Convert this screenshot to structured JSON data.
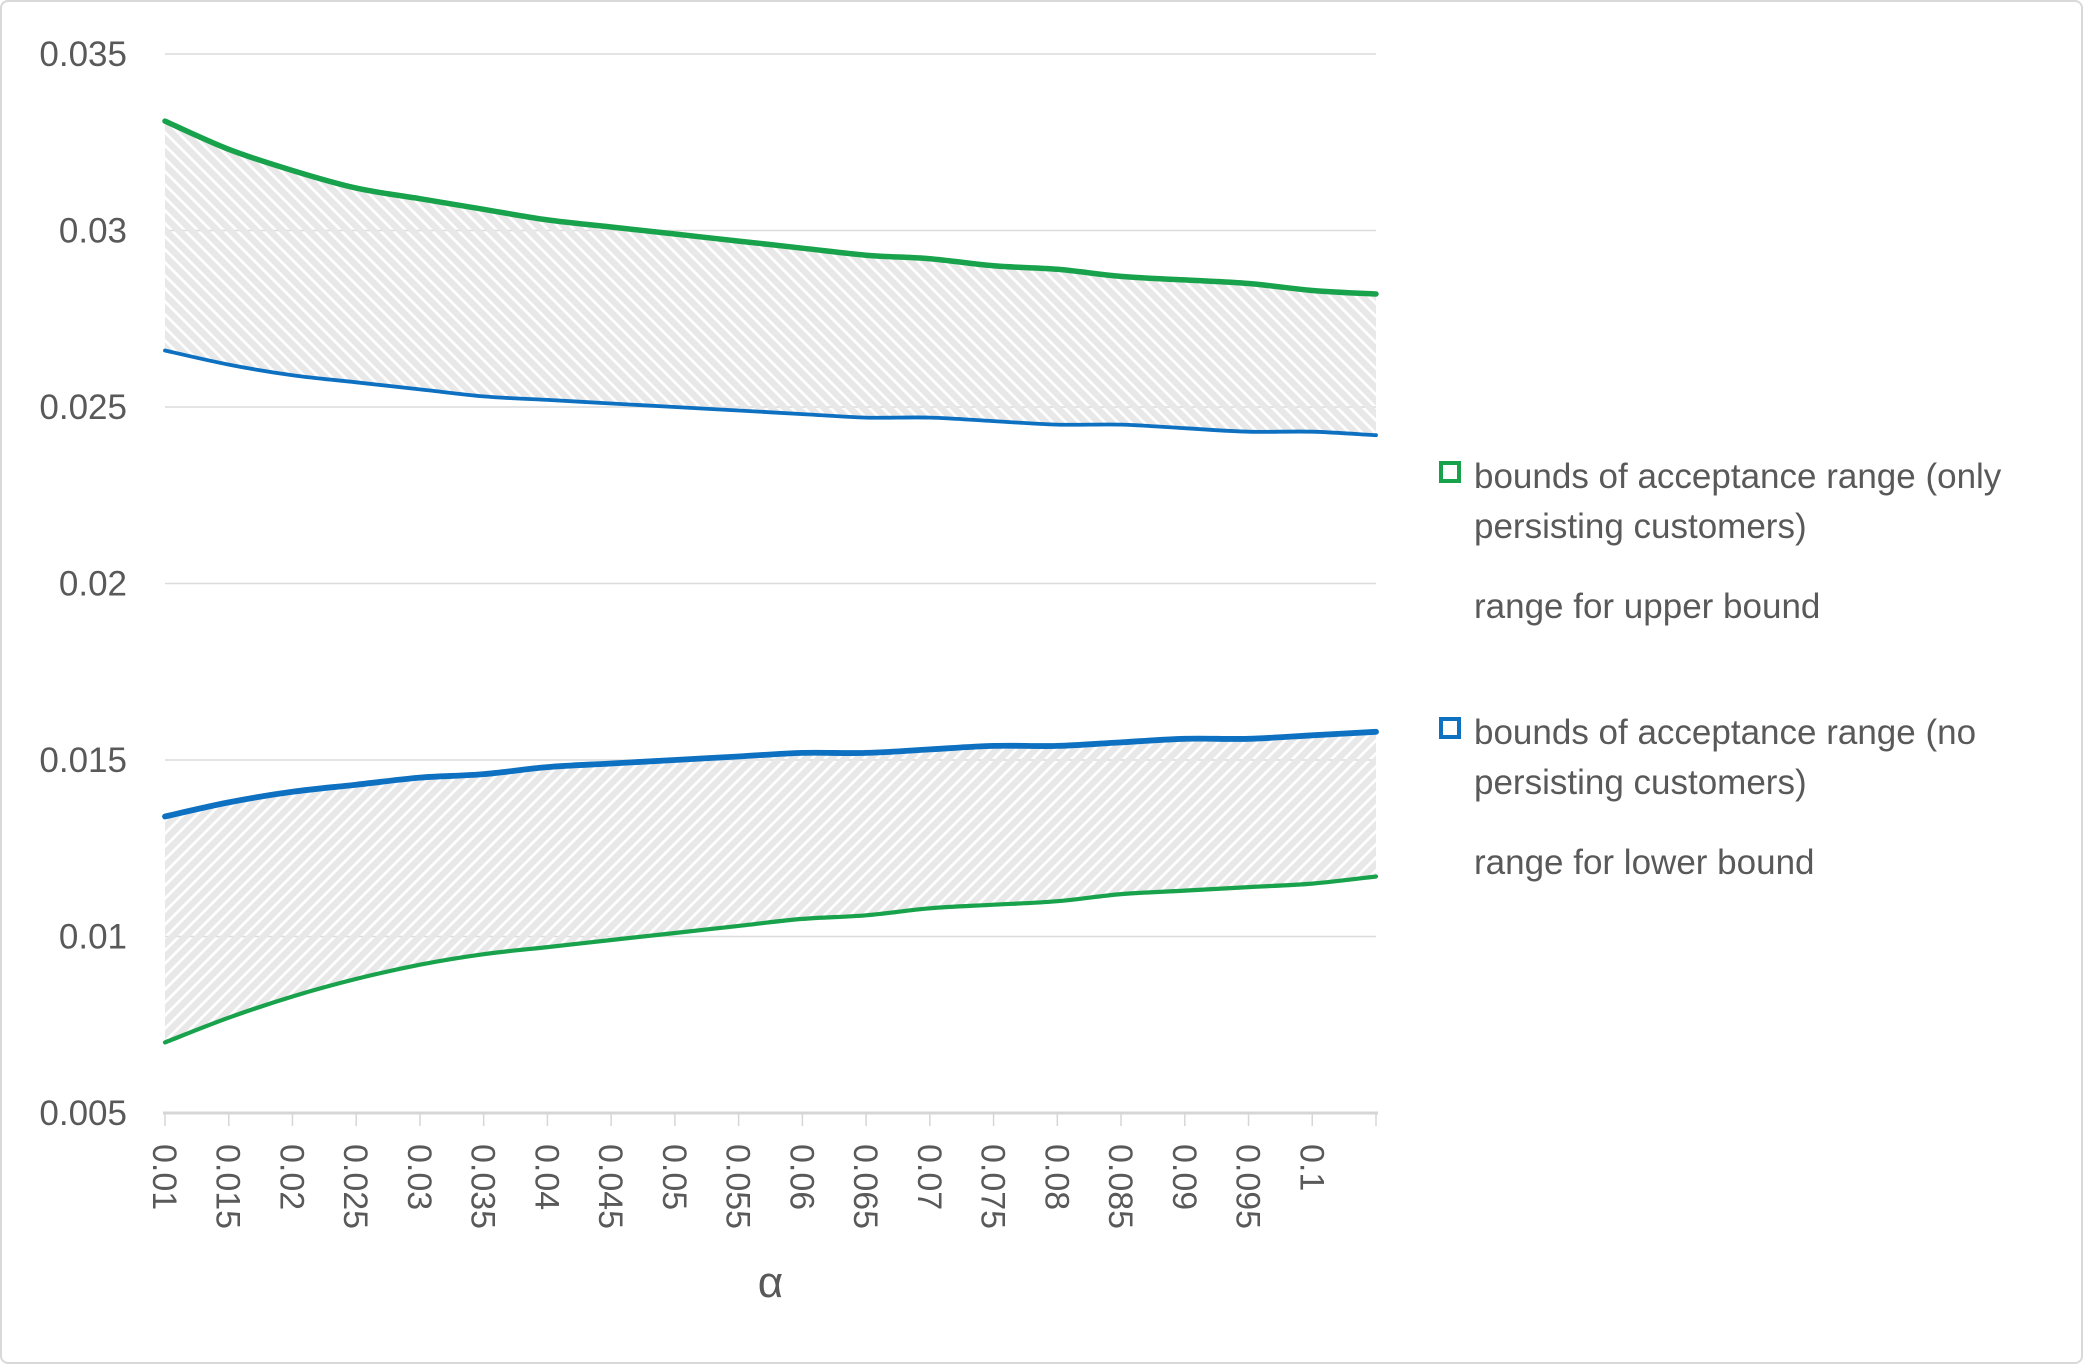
{
  "figure": {
    "background": "#ffffff",
    "border_color": "#d9d9d9",
    "text_color": "#595959",
    "gridline_color": "#dcdcdc",
    "axis_line_color": "#d6d6d6",
    "hatch_color": "#e8e8e8"
  },
  "chart_data": {
    "type": "line",
    "title": "",
    "xlabel": "α",
    "ylabel": "",
    "xlim": [
      0.01,
      0.105
    ],
    "ylim": [
      0.005,
      0.035
    ],
    "grid": "horizontal",
    "legend_position": "right",
    "x": [
      0.01,
      0.015,
      0.02,
      0.025,
      0.03,
      0.035,
      0.04,
      0.045,
      0.05,
      0.055,
      0.06,
      0.065,
      0.07,
      0.075,
      0.08,
      0.085,
      0.09,
      0.095,
      0.1,
      0.105
    ],
    "x_tick_labels": [
      "0.01",
      "0.015",
      "0.02",
      "0.025",
      "0.03",
      "0.035",
      "0.04",
      "0.045",
      "0.05",
      "0.055",
      "0.06",
      "0.065",
      "0.07",
      "0.075",
      "0.08",
      "0.085",
      "0.09",
      "0.095",
      "0.1"
    ],
    "y_ticks": [
      0.005,
      0.01,
      0.015,
      0.02,
      0.025,
      0.03,
      0.035
    ],
    "y_tick_labels": [
      "0.005",
      "0.01",
      "0.015",
      "0.02",
      "0.025",
      "0.03",
      "0.035"
    ],
    "series": [
      {
        "name": "upper bound of acceptance range (only persisting customers)",
        "color": "#18a24b",
        "stroke_width": 5.5,
        "values": [
          0.0331,
          0.0323,
          0.0317,
          0.0312,
          0.0309,
          0.0306,
          0.0303,
          0.0301,
          0.0299,
          0.0297,
          0.0295,
          0.0293,
          0.0292,
          0.029,
          0.0289,
          0.0287,
          0.0286,
          0.0285,
          0.0283,
          0.0282
        ]
      },
      {
        "name": "upper bound of acceptance range (no persisting customers)",
        "color": "#0d70c0",
        "stroke_width": 3.8,
        "values": [
          0.0266,
          0.0262,
          0.0259,
          0.0257,
          0.0255,
          0.0253,
          0.0252,
          0.0251,
          0.025,
          0.0249,
          0.0248,
          0.0247,
          0.0247,
          0.0246,
          0.0245,
          0.0245,
          0.0244,
          0.0243,
          0.0243,
          0.0242
        ]
      },
      {
        "name": "lower bound of acceptance range (no persisting customers)",
        "color": "#0d70c0",
        "stroke_width": 5.8,
        "values": [
          0.0134,
          0.0138,
          0.0141,
          0.0143,
          0.0145,
          0.0146,
          0.0148,
          0.0149,
          0.015,
          0.0151,
          0.0152,
          0.0152,
          0.0153,
          0.0154,
          0.0154,
          0.0155,
          0.0156,
          0.0156,
          0.0157,
          0.0158
        ]
      },
      {
        "name": "lower bound of acceptance range (only persisting customers)",
        "color": "#18a24b",
        "stroke_width": 4.2,
        "values": [
          0.007,
          0.0077,
          0.0083,
          0.0088,
          0.0092,
          0.0095,
          0.0097,
          0.0099,
          0.0101,
          0.0103,
          0.0105,
          0.0106,
          0.0108,
          0.0109,
          0.011,
          0.0112,
          0.0113,
          0.0114,
          0.0115,
          0.0117
        ]
      }
    ],
    "areas": [
      {
        "name": "range for upper bound",
        "between_series": [
          0,
          1
        ],
        "hatch": "down-diagonal"
      },
      {
        "name": "range for lower bound",
        "between_series": [
          2,
          3
        ],
        "hatch": "up-diagonal"
      }
    ]
  },
  "legend": {
    "items": [
      {
        "swatch": "green-outline-square",
        "color": "#18a24b",
        "lines": [
          "bounds of acceptance range (only",
          "persisting customers)"
        ]
      },
      {
        "swatch": "hatch-down",
        "lines": [
          "range for upper bound"
        ]
      },
      {
        "swatch": "blue-outline-square",
        "color": "#0d70c0",
        "lines": [
          "bounds of acceptance range (no",
          "persisting customers)"
        ]
      },
      {
        "swatch": "hatch-up",
        "lines": [
          "range for lower bound"
        ]
      }
    ]
  },
  "axis": {
    "x_label": "α"
  }
}
